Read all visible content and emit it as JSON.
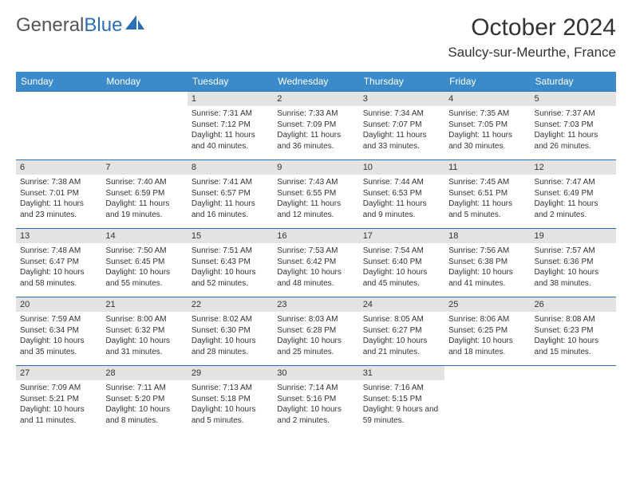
{
  "logo": {
    "text1": "General",
    "text2": "Blue"
  },
  "title": "October 2024",
  "location": "Saulcy-sur-Meurthe, France",
  "colors": {
    "header_bg": "#3b8bca",
    "header_text": "#ffffff",
    "daynum_bg": "#e3e3e3",
    "border": "#2a6fb5",
    "logo_accent": "#2a6fb5"
  },
  "weekdays": [
    "Sunday",
    "Monday",
    "Tuesday",
    "Wednesday",
    "Thursday",
    "Friday",
    "Saturday"
  ],
  "weeks": [
    [
      null,
      null,
      {
        "n": "1",
        "sr": "7:31 AM",
        "ss": "7:12 PM",
        "dl": "11 hours and 40 minutes."
      },
      {
        "n": "2",
        "sr": "7:33 AM",
        "ss": "7:09 PM",
        "dl": "11 hours and 36 minutes."
      },
      {
        "n": "3",
        "sr": "7:34 AM",
        "ss": "7:07 PM",
        "dl": "11 hours and 33 minutes."
      },
      {
        "n": "4",
        "sr": "7:35 AM",
        "ss": "7:05 PM",
        "dl": "11 hours and 30 minutes."
      },
      {
        "n": "5",
        "sr": "7:37 AM",
        "ss": "7:03 PM",
        "dl": "11 hours and 26 minutes."
      }
    ],
    [
      {
        "n": "6",
        "sr": "7:38 AM",
        "ss": "7:01 PM",
        "dl": "11 hours and 23 minutes."
      },
      {
        "n": "7",
        "sr": "7:40 AM",
        "ss": "6:59 PM",
        "dl": "11 hours and 19 minutes."
      },
      {
        "n": "8",
        "sr": "7:41 AM",
        "ss": "6:57 PM",
        "dl": "11 hours and 16 minutes."
      },
      {
        "n": "9",
        "sr": "7:43 AM",
        "ss": "6:55 PM",
        "dl": "11 hours and 12 minutes."
      },
      {
        "n": "10",
        "sr": "7:44 AM",
        "ss": "6:53 PM",
        "dl": "11 hours and 9 minutes."
      },
      {
        "n": "11",
        "sr": "7:45 AM",
        "ss": "6:51 PM",
        "dl": "11 hours and 5 minutes."
      },
      {
        "n": "12",
        "sr": "7:47 AM",
        "ss": "6:49 PM",
        "dl": "11 hours and 2 minutes."
      }
    ],
    [
      {
        "n": "13",
        "sr": "7:48 AM",
        "ss": "6:47 PM",
        "dl": "10 hours and 58 minutes."
      },
      {
        "n": "14",
        "sr": "7:50 AM",
        "ss": "6:45 PM",
        "dl": "10 hours and 55 minutes."
      },
      {
        "n": "15",
        "sr": "7:51 AM",
        "ss": "6:43 PM",
        "dl": "10 hours and 52 minutes."
      },
      {
        "n": "16",
        "sr": "7:53 AM",
        "ss": "6:42 PM",
        "dl": "10 hours and 48 minutes."
      },
      {
        "n": "17",
        "sr": "7:54 AM",
        "ss": "6:40 PM",
        "dl": "10 hours and 45 minutes."
      },
      {
        "n": "18",
        "sr": "7:56 AM",
        "ss": "6:38 PM",
        "dl": "10 hours and 41 minutes."
      },
      {
        "n": "19",
        "sr": "7:57 AM",
        "ss": "6:36 PM",
        "dl": "10 hours and 38 minutes."
      }
    ],
    [
      {
        "n": "20",
        "sr": "7:59 AM",
        "ss": "6:34 PM",
        "dl": "10 hours and 35 minutes."
      },
      {
        "n": "21",
        "sr": "8:00 AM",
        "ss": "6:32 PM",
        "dl": "10 hours and 31 minutes."
      },
      {
        "n": "22",
        "sr": "8:02 AM",
        "ss": "6:30 PM",
        "dl": "10 hours and 28 minutes."
      },
      {
        "n": "23",
        "sr": "8:03 AM",
        "ss": "6:28 PM",
        "dl": "10 hours and 25 minutes."
      },
      {
        "n": "24",
        "sr": "8:05 AM",
        "ss": "6:27 PM",
        "dl": "10 hours and 21 minutes."
      },
      {
        "n": "25",
        "sr": "8:06 AM",
        "ss": "6:25 PM",
        "dl": "10 hours and 18 minutes."
      },
      {
        "n": "26",
        "sr": "8:08 AM",
        "ss": "6:23 PM",
        "dl": "10 hours and 15 minutes."
      }
    ],
    [
      {
        "n": "27",
        "sr": "7:09 AM",
        "ss": "5:21 PM",
        "dl": "10 hours and 11 minutes."
      },
      {
        "n": "28",
        "sr": "7:11 AM",
        "ss": "5:20 PM",
        "dl": "10 hours and 8 minutes."
      },
      {
        "n": "29",
        "sr": "7:13 AM",
        "ss": "5:18 PM",
        "dl": "10 hours and 5 minutes."
      },
      {
        "n": "30",
        "sr": "7:14 AM",
        "ss": "5:16 PM",
        "dl": "10 hours and 2 minutes."
      },
      {
        "n": "31",
        "sr": "7:16 AM",
        "ss": "5:15 PM",
        "dl": "9 hours and 59 minutes."
      },
      null,
      null
    ]
  ]
}
